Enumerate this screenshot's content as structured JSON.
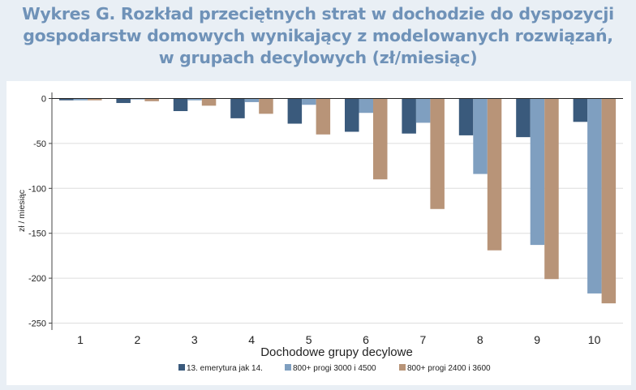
{
  "title_lines": [
    "Wykres G. Rozkład przeciętnych strat w dochodzie do dyspozycji",
    "gospodarstw domowych wynikający z modelowanych rozwiązań,",
    "w grupach decylowych (zł/miesiąc)"
  ],
  "chart_data": {
    "type": "bar",
    "title": "Wykres G. Rozkład przeciętnych strat w dochodzie do dyspozycji gospodarstw domowych wynikający z modelowanych rozwiązań, w grupach decylowych (zł/miesiąc)",
    "xlabel": "Dochodowe grupy decylowe",
    "ylabel": "zł / miesiąc",
    "categories": [
      "1",
      "2",
      "3",
      "4",
      "5",
      "6",
      "7",
      "8",
      "9",
      "10"
    ],
    "ylim": [
      -255,
      5
    ],
    "yticks": [
      0,
      -50,
      -100,
      -150,
      -200,
      -250
    ],
    "grid": true,
    "legend_position": "bottom",
    "series": [
      {
        "name": "13. emerytura jak 14.",
        "color": "#3a5a7c",
        "values": [
          -2,
          -5,
          -14,
          -22,
          -28,
          -37,
          -39,
          -41,
          -43,
          -26
        ]
      },
      {
        "name": "800+ progi 3000 i 4500",
        "color": "#7f9fc0",
        "values": [
          -2,
          -1,
          -2,
          -4,
          -7,
          -16,
          -27,
          -84,
          -163,
          -217
        ]
      },
      {
        "name": "800+ progi 2400 i 3600",
        "color": "#b89478",
        "values": [
          -2,
          -3,
          -8,
          -17,
          -40,
          -90,
          -123,
          -169,
          -201,
          -228
        ]
      }
    ]
  }
}
